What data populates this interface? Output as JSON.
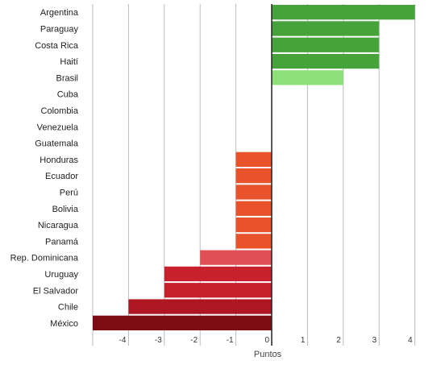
{
  "chart_data": {
    "type": "bar",
    "orientation": "horizontal",
    "title": "",
    "xlabel": "Puntos",
    "ylabel": "",
    "xlim": [
      -5,
      4.5
    ],
    "x_ticks": [
      -4,
      -3,
      -2,
      -1,
      0,
      1,
      2,
      3,
      4
    ],
    "x_tick_labels": [
      "-4",
      "-3",
      "-2",
      "-1",
      "0",
      "1",
      "2",
      "3",
      "4"
    ],
    "grid": true,
    "legend": "none",
    "categories": [
      "Argentina",
      "Paraguay",
      "Costa Rica",
      "Haití",
      "Brasil",
      "Cuba",
      "Colombia",
      "Venezuela",
      "Guatemala",
      "Honduras",
      "Ecuador",
      "Perú",
      "Bolivia",
      "Nicaragua",
      "Panamá",
      "Rep. Dominicana",
      "Uruguay",
      "El Salvador",
      "Chile",
      "México"
    ],
    "values": [
      4,
      3,
      3,
      3,
      2,
      0,
      0,
      0,
      0,
      -1,
      -1,
      -1,
      -1,
      -1,
      -1,
      -2,
      -3,
      -3,
      -4,
      -5
    ],
    "bar_colors": [
      "#46a33b",
      "#46a33b",
      "#46a33b",
      "#46a33b",
      "#8ee07a",
      "#cccccc",
      "#cccccc",
      "#cccccc",
      "#cccccc",
      "#e8532b",
      "#e8532b",
      "#e8532b",
      "#e8532b",
      "#e8532b",
      "#e8532b",
      "#df4f55",
      "#c8202c",
      "#c8202c",
      "#ae1622",
      "#7c0b14"
    ],
    "gridline_color": "#bbbbbb",
    "axis_color": "#222222"
  }
}
